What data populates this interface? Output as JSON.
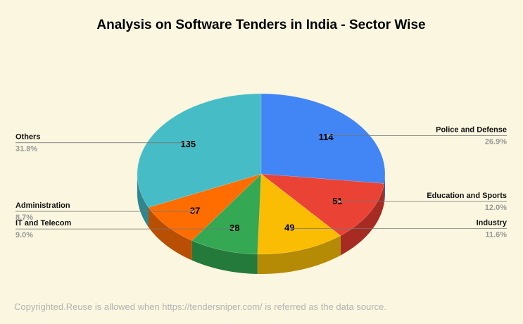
{
  "chart_data": {
    "type": "pie",
    "title": "Analysis on Software Tenders in India - Sector Wise",
    "style": "3d",
    "slices": [
      {
        "label": "Police and Defense",
        "value": 114,
        "percent": "26.9%",
        "color": "#4285f4",
        "side_color": "#2a5fb8"
      },
      {
        "label": "Education and Sports",
        "value": 51,
        "percent": "12.0%",
        "color": "#ea4335",
        "side_color": "#a62c23"
      },
      {
        "label": "Industry",
        "value": 49,
        "percent": "11.6%",
        "color": "#fbbc04",
        "side_color": "#b58a05"
      },
      {
        "label": "IT and Telecom",
        "value": 38,
        "percent": "9.0%",
        "color": "#34a853",
        "side_color": "#247a3b"
      },
      {
        "label": "Administration",
        "value": 37,
        "percent": "8.7%",
        "color": "#ff6d01",
        "side_color": "#b84f03"
      },
      {
        "label": "Others",
        "value": 135,
        "percent": "31.8%",
        "color": "#46bdc6",
        "side_color": "#2f878d"
      }
    ]
  },
  "footer": "Copyrighted.Reuse is allowed when https://tendersniper.com/ is referred as the data source."
}
